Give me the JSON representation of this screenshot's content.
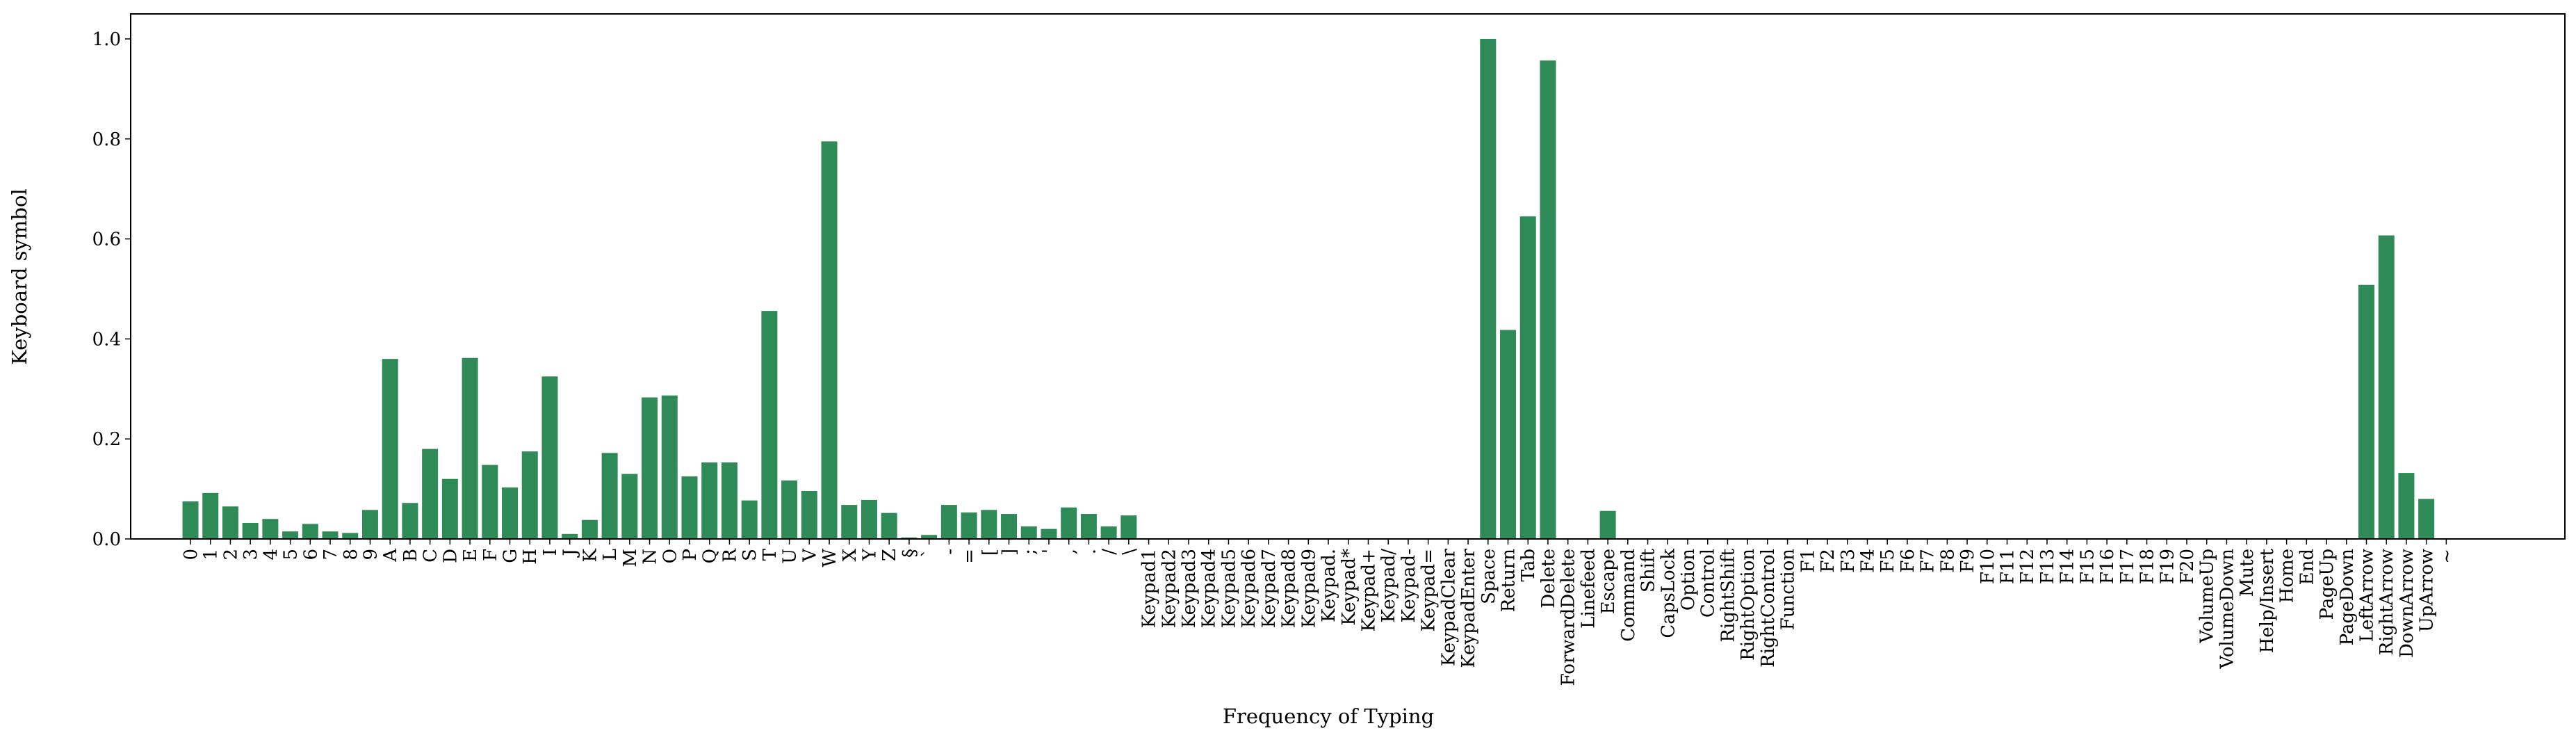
{
  "chart_data": {
    "type": "bar",
    "title": "",
    "xlabel": "Frequency of Typing",
    "ylabel": "Keyboard symbol",
    "ylim": [
      0,
      1.05
    ],
    "yticks": [
      "0.0",
      "0.2",
      "0.4",
      "0.6",
      "0.8",
      "1.0"
    ],
    "ytick_values": [
      0.0,
      0.2,
      0.4,
      0.6,
      0.8,
      1.0
    ],
    "grid": false,
    "legend": "none",
    "bar_color": "#2e8b57",
    "categories": [
      "0",
      "1",
      "2",
      "3",
      "4",
      "5",
      "6",
      "7",
      "8",
      "9",
      "A",
      "B",
      "C",
      "D",
      "E",
      "F",
      "G",
      "H",
      "I",
      "J",
      "K",
      "L",
      "M",
      "N",
      "O",
      "P",
      "Q",
      "R",
      "S",
      "T",
      "U",
      "V",
      "W",
      "X",
      "Y",
      "Z",
      "§",
      "`",
      "-",
      "=",
      "[",
      "]",
      ";",
      "'",
      ",",
      ".",
      "/",
      "\\",
      "Keypad1",
      "Keypad2",
      "Keypad3",
      "Keypad4",
      "Keypad5",
      "Keypad6",
      "Keypad7",
      "Keypad8",
      "Keypad9",
      "Keypad.",
      "Keypad*",
      "Keypad+",
      "Keypad/",
      "Keypad-",
      "Keypad=",
      "KeypadClear",
      "KeypadEnter",
      "Space",
      "Return",
      "Tab",
      "Delete",
      "ForwardDelete",
      "Linefeed",
      "Escape",
      "Command",
      "Shift",
      "CapsLock",
      "Option",
      "Control",
      "RightShift",
      "RightOption",
      "RightControl",
      "Function",
      "F1",
      "F2",
      "F3",
      "F4",
      "F5",
      "F6",
      "F7",
      "F8",
      "F9",
      "F10",
      "F11",
      "F12",
      "F13",
      "F14",
      "F15",
      "F16",
      "F17",
      "F18",
      "F19",
      "F20",
      "VolumeUp",
      "VolumeDown",
      "Mute",
      "Help/Insert",
      "Home",
      "End",
      "PageUp",
      "PageDown",
      "LeftArrow",
      "RightArrow",
      "DownArrow",
      "UpArrow",
      "~"
    ],
    "values": [
      0.075,
      0.092,
      0.065,
      0.032,
      0.04,
      0.015,
      0.03,
      0.015,
      0.012,
      0.058,
      0.36,
      0.072,
      0.18,
      0.12,
      0.362,
      0.148,
      0.103,
      0.175,
      0.325,
      0.01,
      0.038,
      0.172,
      0.13,
      0.283,
      0.287,
      0.125,
      0.153,
      0.153,
      0.077,
      0.456,
      0.117,
      0.096,
      0.795,
      0.068,
      0.078,
      0.052,
      0.003,
      0.008,
      0.068,
      0.053,
      0.058,
      0.05,
      0.025,
      0.02,
      0.063,
      0.05,
      0.025,
      0.047,
      0,
      0,
      0,
      0,
      0,
      0,
      0,
      0,
      0,
      0,
      0,
      0,
      0,
      0,
      0,
      0,
      0,
      1.0,
      0.418,
      0.645,
      0.957,
      0,
      0,
      0.056,
      0,
      0,
      0,
      0,
      0,
      0,
      0,
      0,
      0,
      0,
      0,
      0,
      0,
      0,
      0,
      0,
      0,
      0,
      0,
      0,
      0,
      0,
      0,
      0,
      0,
      0,
      0,
      0,
      0,
      0,
      0,
      0,
      0,
      0,
      0,
      0,
      0,
      0.508,
      0.607,
      0.132,
      0.08,
      0
    ]
  }
}
